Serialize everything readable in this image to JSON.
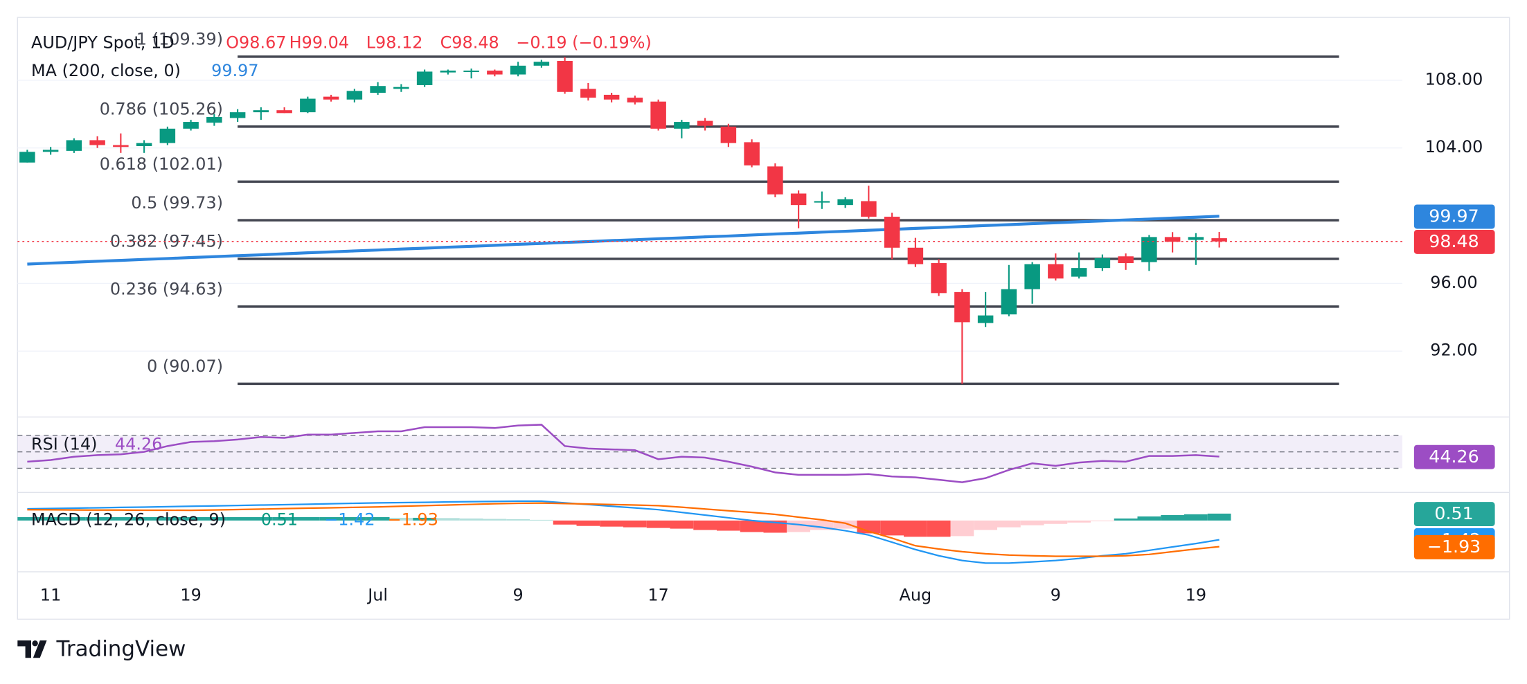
{
  "chart_data": {
    "type": "candlestick",
    "title": "AUD/JPY Spot, 1D",
    "header": [
      "O98.67",
      "H99.04",
      "L98.12",
      "C98.48",
      "−0.19 (−0.19%)"
    ],
    "categories": [
      null,
      "11",
      null,
      null,
      null,
      null,
      null,
      "19",
      null,
      null,
      null,
      null,
      null,
      null,
      null,
      "Jul",
      null,
      null,
      null,
      null,
      null,
      "9",
      null,
      null,
      null,
      null,
      null,
      "17",
      null,
      null,
      null,
      null,
      null,
      null,
      null,
      null,
      null,
      null,
      "Aug",
      null,
      null,
      null,
      null,
      null,
      "9",
      null,
      null,
      null,
      null,
      null,
      "19",
      null
    ],
    "open": [
      103.14,
      103.77,
      103.83,
      104.46,
      104.17,
      104.11,
      104.29,
      105.14,
      105.49,
      105.77,
      106.11,
      106.23,
      106.11,
      107.03,
      106.86,
      107.26,
      107.49,
      107.71,
      108.46,
      108.51,
      108.57,
      108.34,
      108.86,
      109.14,
      107.49,
      107.14,
      106.97,
      106.74,
      105.14,
      105.6,
      105.26,
      104.34,
      102.91,
      101.31,
      100.8,
      100.63,
      100.86,
      99.94,
      98.11,
      97.2,
      95.49,
      93.66,
      94.17,
      95.66,
      97.14,
      96.4,
      96.91,
      97.6,
      97.26,
      98.74,
      98.57,
      98.67
    ],
    "high": [
      103.89,
      104.06,
      104.57,
      104.69,
      104.86,
      104.46,
      105.26,
      105.66,
      106.0,
      106.29,
      106.4,
      106.4,
      107.03,
      107.14,
      107.49,
      107.89,
      107.77,
      108.63,
      108.63,
      108.69,
      108.63,
      109.09,
      109.2,
      109.37,
      107.83,
      107.26,
      107.09,
      106.86,
      105.66,
      105.77,
      105.43,
      104.51,
      103.09,
      101.49,
      101.43,
      101.09,
      101.77,
      100.17,
      98.69,
      97.43,
      95.66,
      95.49,
      97.09,
      97.26,
      97.77,
      97.83,
      97.71,
      97.77,
      98.86,
      99.03,
      98.97,
      99.04
    ],
    "low": [
      103.14,
      103.6,
      103.71,
      104.0,
      103.71,
      103.71,
      104.17,
      105.03,
      105.31,
      105.54,
      105.66,
      106.06,
      106.06,
      106.74,
      106.69,
      107.14,
      107.31,
      107.6,
      108.34,
      108.11,
      108.23,
      108.23,
      108.74,
      107.2,
      106.8,
      106.69,
      106.57,
      105.03,
      104.57,
      105.03,
      104.06,
      102.86,
      101.09,
      99.26,
      100.4,
      100.46,
      99.83,
      97.43,
      96.97,
      95.26,
      90.07,
      93.43,
      94.06,
      94.8,
      96.17,
      96.29,
      96.74,
      96.8,
      96.74,
      97.83,
      97.09,
      98.12
    ],
    "close": [
      103.77,
      103.89,
      104.46,
      104.17,
      104.06,
      104.29,
      105.14,
      105.54,
      105.83,
      106.11,
      106.23,
      106.06,
      106.91,
      106.86,
      107.37,
      107.66,
      107.6,
      108.51,
      108.57,
      108.57,
      108.34,
      108.86,
      109.09,
      107.31,
      106.97,
      106.86,
      106.69,
      105.14,
      105.54,
      105.31,
      104.29,
      102.97,
      101.26,
      100.63,
      100.86,
      100.97,
      99.94,
      98.11,
      97.14,
      95.43,
      93.71,
      94.11,
      95.66,
      97.14,
      96.29,
      96.91,
      97.49,
      97.2,
      98.74,
      98.46,
      98.74,
      98.48
    ],
    "up_color": "#089981",
    "down_color": "#f23645",
    "ylim": [
      88.17,
      111.71
    ],
    "yticks": [
      {
        "value": 108,
        "label": "108.00"
      },
      {
        "value": 104,
        "label": "104.00"
      },
      {
        "value": 96,
        "label": "96.00"
      },
      {
        "value": 92,
        "label": "92.00"
      }
    ],
    "grid": true,
    "last_label": "98.48",
    "ma": {
      "name": "MA (200, close, 0)",
      "value_label": "99.97",
      "color": "#2e86de",
      "values": [
        97.14,
        97.2,
        97.25,
        97.31,
        97.36,
        97.42,
        97.47,
        97.53,
        97.58,
        97.64,
        97.69,
        97.75,
        97.81,
        97.86,
        97.92,
        97.97,
        98.03,
        98.08,
        98.14,
        98.19,
        98.25,
        98.31,
        98.36,
        98.42,
        98.47,
        98.53,
        98.58,
        98.64,
        98.69,
        98.75,
        98.8,
        98.86,
        98.92,
        98.97,
        99.03,
        99.08,
        99.14,
        99.19,
        99.25,
        99.3,
        99.36,
        99.42,
        99.47,
        99.53,
        99.58,
        99.64,
        99.69,
        99.75,
        99.8,
        99.86,
        99.91,
        99.97
      ]
    },
    "fib": [
      {
        "label": "1 (109.39)",
        "value": 109.39
      },
      {
        "label": "0.786 (105.26)",
        "value": 105.26
      },
      {
        "label": "0.618 (102.01)",
        "value": 102.01
      },
      {
        "label": "0.5 (99.73)",
        "value": 99.73
      },
      {
        "label": "0.382 (97.45)",
        "value": 97.45
      },
      {
        "label": "0.236 (94.63)",
        "value": 94.63
      },
      {
        "label": "0 (90.07)",
        "value": 90.07
      }
    ],
    "rsi": {
      "name": "RSI (14)",
      "value_label": "44.26",
      "color": "#9c4dc4",
      "levels": [
        70,
        50,
        30
      ],
      "ylim": [
        1.8,
        91.2
      ],
      "values": [
        38,
        40,
        44,
        46,
        47,
        50,
        57,
        62,
        63,
        65,
        68,
        67,
        71,
        71,
        73,
        75,
        75,
        80,
        80,
        80,
        79,
        82,
        83,
        57,
        54,
        53,
        52,
        41,
        44,
        43,
        38,
        32,
        25,
        22,
        22,
        22,
        23,
        20,
        19,
        16,
        13,
        18,
        28,
        36,
        33,
        37,
        39,
        38,
        45,
        45,
        46,
        44.26
      ]
    },
    "macd": {
      "name": "MACD (12, 26, close, 9)",
      "ylim": [
        -3.71,
        2.0
      ],
      "macd": {
        "value_label": "−1.42",
        "color": "#2196f3",
        "values": [
          0.86,
          0.89,
          0.91,
          0.94,
          0.97,
          0.99,
          1.02,
          1.05,
          1.08,
          1.11,
          1.14,
          1.17,
          1.2,
          1.24,
          1.27,
          1.3,
          1.32,
          1.34,
          1.37,
          1.39,
          1.41,
          1.43,
          1.43,
          1.3,
          1.18,
          1.05,
          0.93,
          0.8,
          0.6,
          0.4,
          0.2,
          0.0,
          -0.15,
          -0.3,
          -0.5,
          -0.75,
          -1.07,
          -1.6,
          -2.14,
          -2.6,
          -2.95,
          -3.14,
          -3.14,
          -3.05,
          -2.95,
          -2.8,
          -2.6,
          -2.45,
          -2.2,
          -1.95,
          -1.7,
          -1.42
        ]
      },
      "signal": {
        "value_label": "−1.93",
        "color": "#ff6d00",
        "values": [
          0.8,
          0.79,
          0.78,
          0.77,
          0.77,
          0.76,
          0.76,
          0.75,
          0.78,
          0.81,
          0.84,
          0.88,
          0.91,
          0.94,
          0.97,
          1.0,
          1.05,
          1.1,
          1.14,
          1.19,
          1.24,
          1.27,
          1.29,
          1.25,
          1.22,
          1.18,
          1.14,
          1.1,
          0.98,
          0.85,
          0.72,
          0.6,
          0.45,
          0.25,
          0.05,
          -0.2,
          -0.8,
          -1.3,
          -1.86,
          -2.1,
          -2.3,
          -2.45,
          -2.55,
          -2.6,
          -2.64,
          -2.64,
          -2.64,
          -2.6,
          -2.5,
          -2.3,
          -2.1,
          -1.93
        ]
      },
      "histogram": {
        "value_label": "0.51",
        "colors": [
          "#26a69a",
          "#b2dfdb",
          "#ff5252",
          "#ffcdd2"
        ],
        "values": [
          0.25,
          0.25,
          0.25,
          0.25,
          0.25,
          0.25,
          0.25,
          0.25,
          0.25,
          0.25,
          0.25,
          0.25,
          0.25,
          0.25,
          0.25,
          0.25,
          0.2,
          0.2,
          0.18,
          0.15,
          0.12,
          0.1,
          0.05,
          -0.3,
          -0.4,
          -0.45,
          -0.5,
          -0.55,
          -0.6,
          -0.7,
          -0.75,
          -0.85,
          -0.9,
          -0.85,
          -0.7,
          -0.6,
          -0.95,
          -1.1,
          -1.2,
          -1.2,
          -1.15,
          -0.7,
          -0.5,
          -0.35,
          -0.25,
          -0.15,
          -0.05,
          0.15,
          0.3,
          0.4,
          0.46,
          0.51
        ]
      }
    }
  },
  "brand": "TradingView"
}
